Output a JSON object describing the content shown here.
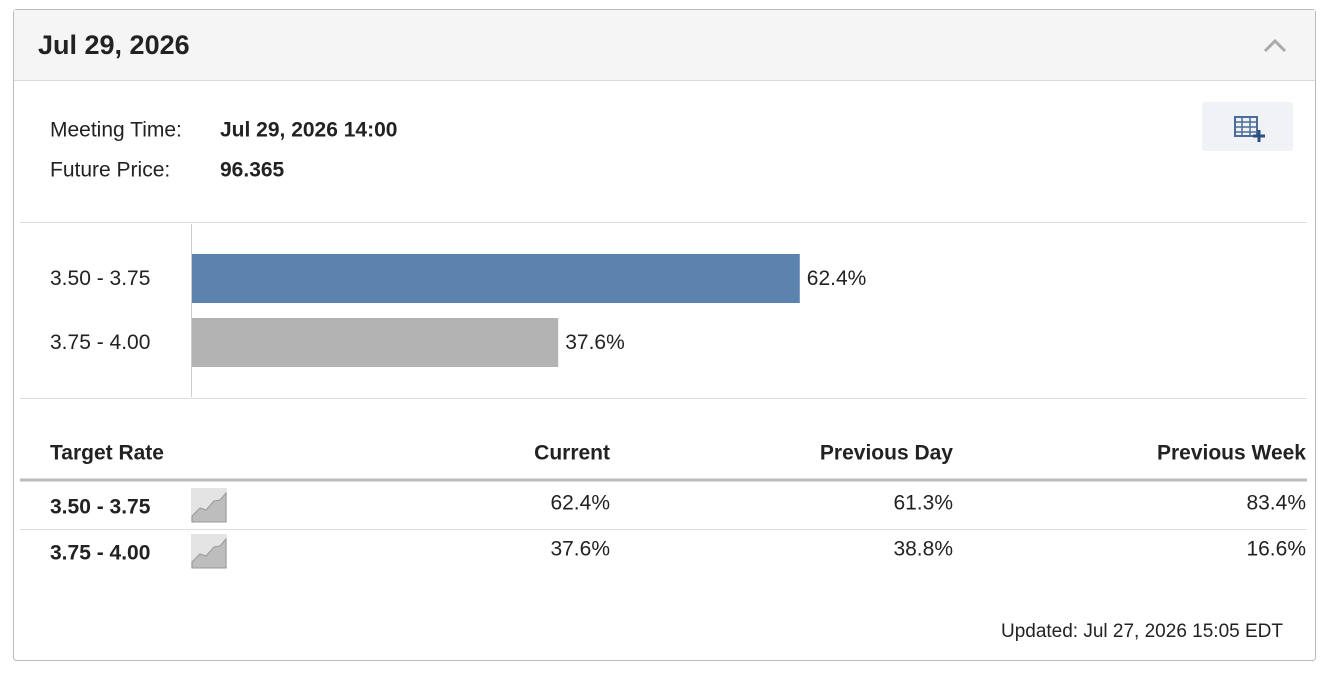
{
  "header": {
    "title": "Jul 29, 2026"
  },
  "info": {
    "meeting_label": "Meeting Time:",
    "meeting_value": "Jul 29, 2026 14:00",
    "price_label": "Future Price:",
    "price_value": "96.365"
  },
  "chart_data": {
    "type": "bar",
    "categories": [
      "3.50 - 3.75",
      "3.75 - 4.00"
    ],
    "values": [
      62.4,
      37.6
    ],
    "value_labels": [
      "62.4%",
      "37.6%"
    ],
    "colors": [
      "#5b83ad",
      "#b3b3b3"
    ]
  },
  "table": {
    "header": [
      "Target Rate",
      "Current",
      "Previous Day",
      "Previous Week"
    ],
    "rows": [
      [
        "3.50 - 3.75",
        "62.4%",
        "61.3%",
        "83.4%"
      ],
      [
        "3.75 - 4.00",
        "37.6%",
        "38.8%",
        "16.6%"
      ]
    ]
  },
  "footer": {
    "updated": "Updated: Jul 27, 2026 15:05 EDT"
  }
}
